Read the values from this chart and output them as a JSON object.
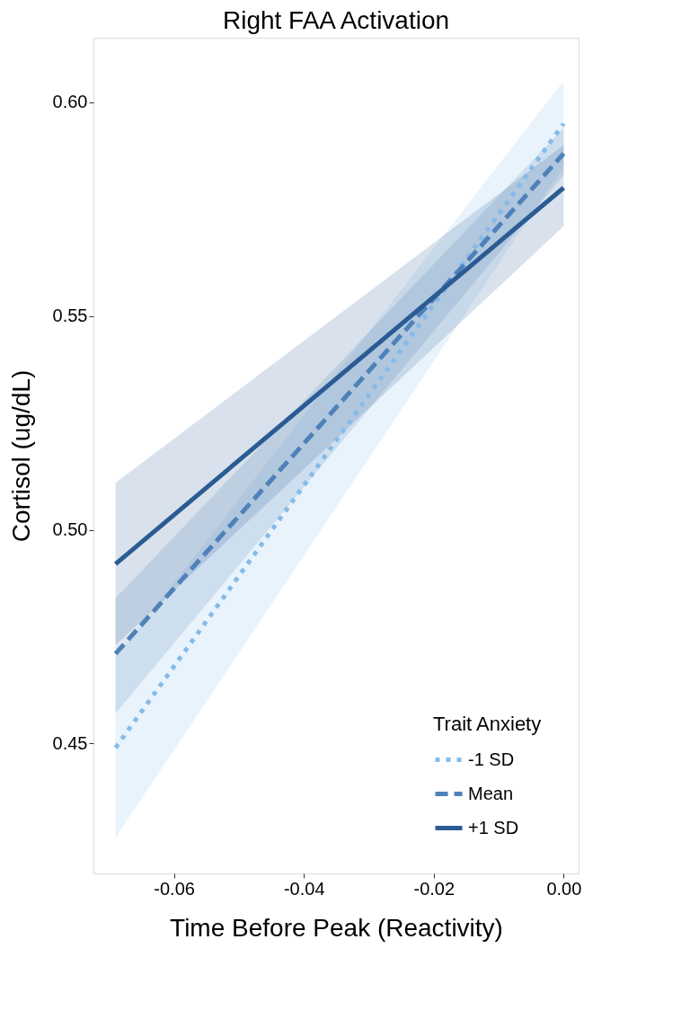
{
  "chart_data": {
    "type": "line",
    "title": "Right FAA Activation",
    "xlabel": "Time Before Peak (Reactivity)",
    "ylabel": "Cortisol (ug/dL)",
    "legend_title": "Trait Anxiety",
    "x": [
      -0.069,
      0.0
    ],
    "series": [
      {
        "name": "-1 SD",
        "color": "#85bbe8",
        "line_style": "dotted",
        "values": [
          0.449,
          0.595
        ],
        "lower": [
          0.428,
          0.585
        ],
        "upper": [
          0.47,
          0.605
        ]
      },
      {
        "name": "Mean",
        "color": "#4f81b9",
        "line_style": "dashed",
        "values": [
          0.471,
          0.588
        ],
        "lower": [
          0.457,
          0.583
        ],
        "upper": [
          0.484,
          0.594
        ]
      },
      {
        "name": "+1 SD",
        "color": "#2a5c93",
        "line_style": "solid",
        "values": [
          0.492,
          0.58
        ],
        "lower": [
          0.473,
          0.571
        ],
        "upper": [
          0.511,
          0.59
        ]
      }
    ],
    "xlim": [
      -0.0724,
      0.0023
    ],
    "ylim": [
      0.4196,
      0.6151
    ],
    "xticks": [
      -0.06,
      -0.04,
      -0.02,
      {
        "value": 0,
        "label": "0.00"
      }
    ],
    "yticks": [
      {
        "value": 0.45,
        "label": "0.45"
      },
      {
        "value": 0.5,
        "label": "0.50"
      },
      {
        "value": 0.55,
        "label": "0.55"
      },
      {
        "value": 0.6,
        "label": "0.60"
      }
    ],
    "grid": false,
    "legend": "bottom right",
    "marker": "none"
  }
}
